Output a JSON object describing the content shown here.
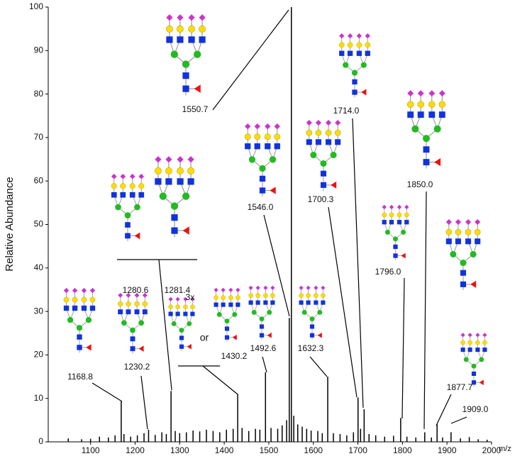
{
  "chart_data": {
    "type": "spectrum",
    "y_label": "Relative Abundance",
    "x_label": "m/z",
    "xlim": [
      1005,
      2000
    ],
    "ylim": [
      0,
      100
    ],
    "xticks": [
      1100,
      1200,
      1300,
      1400,
      1500,
      1600,
      1700,
      1800,
      1900,
      2000
    ],
    "yticks": [
      0,
      10,
      20,
      30,
      40,
      50,
      60,
      70,
      80,
      90,
      100
    ],
    "color": "#000000",
    "x": [
      1050,
      1080,
      1100,
      1120,
      1140,
      1155,
      1168.8,
      1175,
      1190,
      1205,
      1220,
      1230.2,
      1245,
      1260,
      1270,
      1280.6,
      1290,
      1300,
      1315,
      1330,
      1345,
      1360,
      1375,
      1390,
      1405,
      1420,
      1430.2,
      1440,
      1455,
      1470,
      1480,
      1492.6,
      1505,
      1520,
      1530,
      1540,
      1546.0,
      1550.7,
      1556,
      1565,
      1575,
      1585,
      1595,
      1610,
      1620,
      1632.3,
      1645,
      1660,
      1675,
      1690,
      1700.3,
      1706,
      1714.0,
      1725,
      1740,
      1760,
      1780,
      1796.0,
      1810,
      1830,
      1850.0,
      1865,
      1877.7,
      1890,
      1909.0,
      1930,
      1950,
      1970,
      1990
    ],
    "values": [
      0.8,
      0.6,
      0.7,
      1.2,
      1.0,
      1.5,
      9.3,
      1.8,
      1.2,
      1.5,
      2.0,
      2.8,
      1.6,
      2.2,
      1.8,
      11.7,
      2.5,
      2.0,
      2.2,
      2.6,
      2.4,
      2.8,
      2.5,
      2.2,
      2.8,
      3.0,
      11,
      3.2,
      2.5,
      3.0,
      2.8,
      16,
      3.2,
      3.0,
      3.8,
      5,
      28.5,
      100,
      6,
      4.0,
      3.5,
      3.0,
      2.6,
      2.5,
      2.0,
      15,
      2.0,
      1.8,
      1.5,
      2.2,
      10.2,
      3,
      7.5,
      1.8,
      1.5,
      1.2,
      1.4,
      5.5,
      1.2,
      1.0,
      2.2,
      1.0,
      4.0,
      1.0,
      2.2,
      0.8,
      1.1,
      0.6,
      0.5
    ],
    "annotations": [
      {
        "value": 1168.8,
        "label": "1168.8"
      },
      {
        "value": 1230.2,
        "label": "1230.2"
      },
      {
        "value": 1280.6,
        "label": "1280.6"
      },
      {
        "value": 1281.4,
        "label": "1281.4"
      },
      {
        "value": 1430.2,
        "label": "1430.2"
      },
      {
        "value": 1492.6,
        "label": "1492.6"
      },
      {
        "value": 1546.0,
        "label": "1546.0"
      },
      {
        "value": 1550.7,
        "label": "1550.7"
      },
      {
        "value": 1632.3,
        "label": "1632.3"
      },
      {
        "value": 1700.3,
        "label": "1700.3"
      },
      {
        "value": 1714.0,
        "label": "1714.0"
      },
      {
        "value": 1796.0,
        "label": "1796.0"
      },
      {
        "value": 1850.0,
        "label": "1850.0"
      },
      {
        "value": 1877.7,
        "label": "1877.7"
      },
      {
        "value": 1909.0,
        "label": "1909.0"
      }
    ],
    "notes": [
      "3x",
      "or"
    ]
  }
}
